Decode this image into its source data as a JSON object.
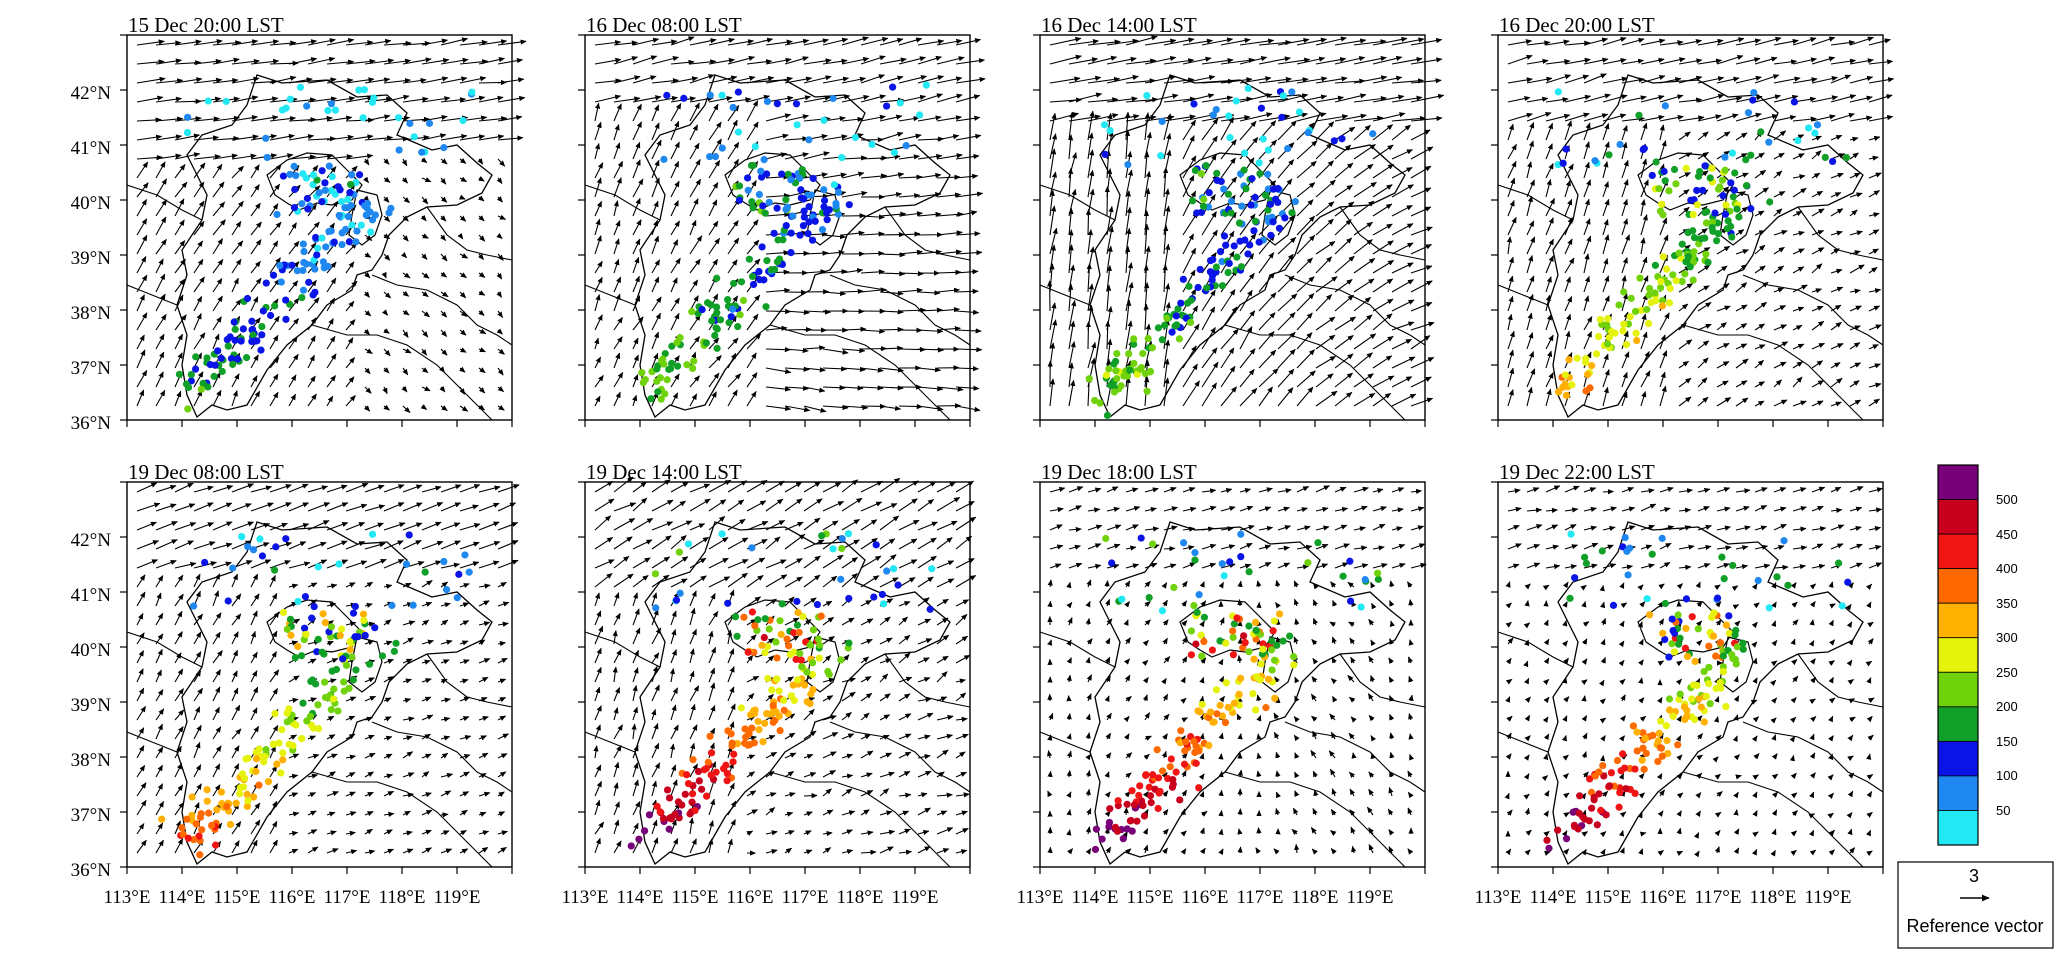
{
  "panels": [
    {
      "title": "15 Dec   20:00 LST",
      "regime": "nw"
    },
    {
      "title": "16 Dec   08:00 LST",
      "regime": "sw"
    },
    {
      "title": "16 Dec   14:00 LST",
      "regime": "swstrong"
    },
    {
      "title": "16 Dec   20:00 LST",
      "regime": "swmod"
    },
    {
      "title": "19 Dec   08:00 LST",
      "regime": "swweak"
    },
    {
      "title": "19 Dec   14:00 LST",
      "regime": "swconv"
    },
    {
      "title": "19 Dec   18:00 LST",
      "regime": "calm"
    },
    {
      "title": "19 Dec   22:00 LST",
      "regime": "calm2"
    }
  ],
  "axes": {
    "x_labels": [
      "113°E",
      "114°E",
      "115°E",
      "116°E",
      "117°E",
      "118°E",
      "119°E"
    ],
    "y_labels": [
      "42°N",
      "41°N",
      "40°N",
      "39°N",
      "38°N",
      "37°N",
      "36°N"
    ]
  },
  "colorbar": {
    "labels": [
      "50",
      "100",
      "150",
      "200",
      "250",
      "300",
      "350",
      "400",
      "450",
      "500"
    ],
    "colors": [
      "#22e8f4",
      "#1e88f0",
      "#0a14e6",
      "#10a028",
      "#70d20a",
      "#e4f20c",
      "#ffb000",
      "#ff6a00",
      "#f01414",
      "#c8001e",
      "#780078"
    ]
  },
  "reference": {
    "value": "3",
    "label": "Reference vector"
  }
}
